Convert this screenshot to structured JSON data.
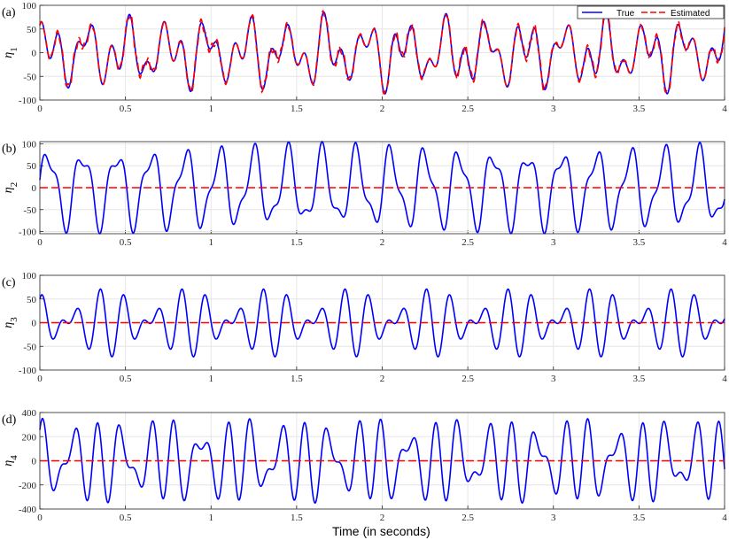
{
  "colors": {
    "true": "#0000ff",
    "estimated": "#ff0000",
    "grid": "#e6e6e6",
    "axes": "#262626"
  },
  "legend": {
    "true_label": "True",
    "estimated_label": "Estimated",
    "placement": "top-right (panel a)"
  },
  "xlabel": "Time (in seconds)",
  "chart_data": [
    {
      "type": "line",
      "panel": "(a)",
      "ylabel_sym": "η",
      "ylabel_sub": "1",
      "xlim": [
        0,
        4
      ],
      "ylim": [
        -100,
        100
      ],
      "grid": true,
      "xticks": [
        "0",
        "0.5",
        "1",
        "1.5",
        "2",
        "2.5",
        "3",
        "3.5",
        "4"
      ],
      "yticks": [
        "-100",
        "-50",
        "0",
        "50",
        "100"
      ],
      "series": [
        {
          "name": "True",
          "style": "solid",
          "color": "#0000ff",
          "wave": {
            "comps": [
              [
                40,
                4.3,
                0.3
              ],
              [
                35,
                9.7,
                1.2
              ],
              [
                15,
                7.2,
                2.0
              ]
            ]
          }
        },
        {
          "name": "Estimated",
          "style": "dashed",
          "color": "#ff0000",
          "wave": {
            "comps": [
              [
                40,
                4.3,
                0.3
              ],
              [
                35,
                9.7,
                1.2
              ],
              [
                15,
                7.2,
                2.0
              ]
            ],
            "noise": 9
          }
        }
      ]
    },
    {
      "type": "line",
      "panel": "(b)",
      "ylabel_sym": "η",
      "ylabel_sub": "2",
      "xlim": [
        0,
        4
      ],
      "ylim": [
        -105,
        105
      ],
      "grid": true,
      "xticks": [
        "0",
        "0.5",
        "1",
        "1.5",
        "2",
        "2.5",
        "3",
        "3.5",
        "4"
      ],
      "yticks": [
        "-100",
        "-50",
        "0",
        "50",
        "100"
      ],
      "series": [
        {
          "name": "True",
          "style": "solid",
          "color": "#0000ff",
          "wave": {
            "comps": [
              [
                80,
                5.0,
                0.0
              ],
              [
                28,
                10.4,
                0.7
              ]
            ],
            "scaleTo": 105
          }
        },
        {
          "name": "Estimated",
          "style": "dashed",
          "color": "#ff0000",
          "constant": 0
        }
      ]
    },
    {
      "type": "line",
      "panel": "(c)",
      "ylabel_sym": "η",
      "ylabel_sub": "3",
      "xlim": [
        0,
        4
      ],
      "ylim": [
        -100,
        100
      ],
      "grid": true,
      "xticks": [
        "0",
        "0.5",
        "1",
        "1.5",
        "2",
        "2.5",
        "3",
        "3.5",
        "4"
      ],
      "yticks": [
        "-100",
        "-50",
        "0",
        "50",
        "100"
      ],
      "series": [
        {
          "name": "True",
          "style": "solid",
          "color": "#0000ff",
          "wave": {
            "comps": [
              [
                35,
                6.3,
                0.4
              ],
              [
                32,
                8.4,
                1.5
              ]
            ],
            "scaleTo": 72
          }
        },
        {
          "name": "Estimated",
          "style": "dashed",
          "color": "#ff0000",
          "constant": 0
        }
      ]
    },
    {
      "type": "line",
      "panel": "(d)",
      "ylabel_sym": "η",
      "ylabel_sub": "4",
      "xlim": [
        0,
        4
      ],
      "ylim": [
        -400,
        400
      ],
      "grid": true,
      "xticks": [
        "0",
        "0.5",
        "1",
        "1.5",
        "2",
        "2.5",
        "3",
        "3.5",
        "4"
      ],
      "yticks": [
        "-400",
        "-200",
        "0",
        "200",
        "400"
      ],
      "series": [
        {
          "name": "True",
          "style": "solid",
          "color": "#0000ff",
          "wave": {
            "comps": [
              [
                170,
                6.6,
                0.2
              ],
              [
                150,
                9.1,
                1.1
              ],
              [
                60,
                4.1,
                2.3
              ]
            ],
            "scaleTo": 350
          }
        },
        {
          "name": "Estimated",
          "style": "dashed",
          "color": "#ff0000",
          "constant": 0
        }
      ]
    }
  ]
}
